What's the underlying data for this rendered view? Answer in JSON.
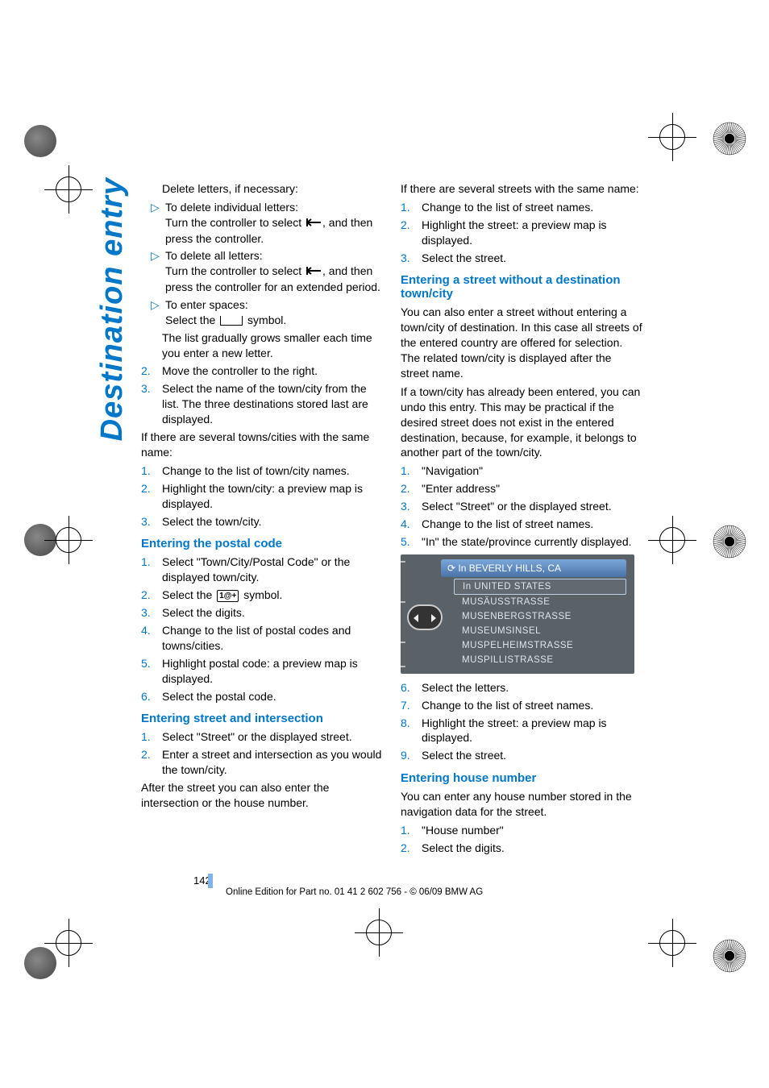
{
  "side_title": "Destination entry",
  "page_number": "142",
  "footer": "Online Edition for Part no. 01 41 2 602 756 - © 06/09 BMW AG",
  "left": {
    "intro": "Delete letters, if necessary:",
    "b1a": "To delete individual letters:",
    "b1b_pre": "Turn the controller to select ",
    "b1b_post": ", and then press the controller.",
    "b2a": "To delete all letters:",
    "b2b_pre": "Turn the controller to select ",
    "b2b_post": ", and then press the controller for an extended period.",
    "b3a": "To enter spaces:",
    "b3b_pre": "Select the ",
    "b3b_post": " symbol.",
    "list_note": "The list gradually grows smaller each time you enter a new letter.",
    "n2": "Move the controller to the right.",
    "n3": "Select the name of the town/city from the list. The three destinations stored last are displayed.",
    "multi_town": "If there are several towns/cities with the same name:",
    "t1": "Change to the list of town/city names.",
    "t2": "Highlight the town/city: a preview map is displayed.",
    "t3": "Select the town/city.",
    "hd_postal": "Entering the postal code",
    "p1": "Select \"Town/City/Postal Code\" or the displayed town/city.",
    "p2_pre": "Select the ",
    "p2_post": " symbol.",
    "p3": "Select the digits.",
    "p4": "Change to the list of postal codes and towns/cities.",
    "p5": "Highlight postal code: a preview map is displayed.",
    "p6": "Select the postal code.",
    "hd_street": "Entering street and intersection",
    "s1": "Select \"Street\" or the displayed street.",
    "s2": "Enter a street and intersection as you would the town/city.",
    "street_after": "After the street you can also enter the intersection or the house number."
  },
  "right": {
    "multi_street": "If there are several streets with the same name:",
    "m1": "Change to the list of street names.",
    "m2": "Highlight the street: a preview map is displayed.",
    "m3": "Select the street.",
    "hd_nodest": "Entering a street without a destination town/city",
    "nodest_p1": "You can also enter a street without entering a town/city of destination. In this case all streets of the entered country are offered for selection. The related town/city is displayed after the street name.",
    "nodest_p2": "If a town/city has already been entered, you can undo this entry. This may be practical if the desired street does not exist in the entered destination, because, for example, it belongs to another part of the town/city.",
    "d1": "\"Navigation\"",
    "d2": "\"Enter address\"",
    "d3": "Select \"Street\" or the displayed street.",
    "d4": "Change to the list of street names.",
    "d5": "\"In\" the state/province currently displayed.",
    "shot_header": "In BEVERLY HILLS, CA",
    "shot_rows": [
      "In UNITED STATES",
      "MUSÄUSSTRASSE",
      "MUSENBERGSTRASSE",
      "MUSEUMSINSEL",
      "MUSPELHEIMSTRASSE",
      "MUSPILLISTRASSE"
    ],
    "d6": "Select the letters.",
    "d7": "Change to the list of street names.",
    "d8": "Highlight the street: a preview map is displayed.",
    "d9": "Select the street.",
    "hd_house": "Entering house number",
    "house_p": "You can enter any house number stored in the navigation data for the street.",
    "h1": "\"House number\"",
    "h2": "Select the digits."
  },
  "style": {
    "accent": "#0077c8",
    "body_font_size": 14,
    "side_font_size": 38,
    "line_height": 1.35
  }
}
